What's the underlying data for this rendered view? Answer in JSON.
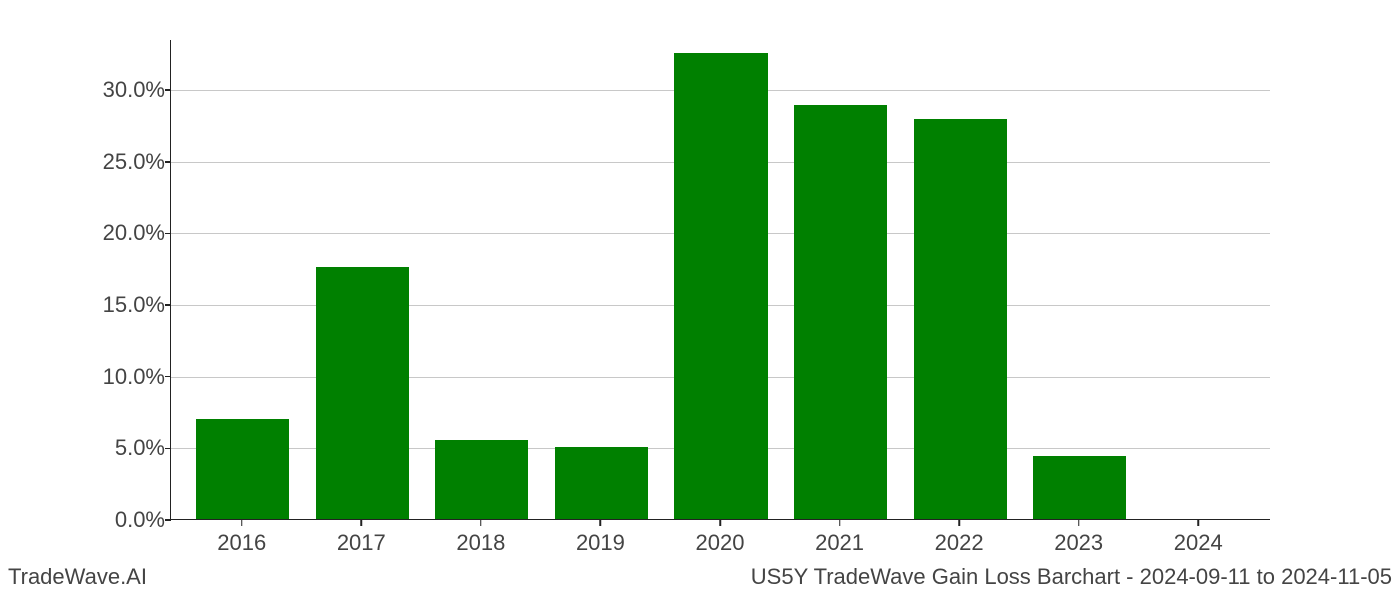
{
  "chart": {
    "type": "bar",
    "categories": [
      "2016",
      "2017",
      "2018",
      "2019",
      "2020",
      "2021",
      "2022",
      "2023",
      "2024"
    ],
    "values": [
      7.0,
      17.6,
      5.5,
      5.0,
      32.5,
      28.9,
      27.9,
      4.4,
      0.0
    ],
    "bar_color": "#008000",
    "grid_color": "#c8c8c8",
    "axis_color": "#222222",
    "tick_label_color": "#444444",
    "background_color": "#ffffff",
    "ylim_min": 0.0,
    "ylim_max": 33.5,
    "yticks": [
      0.0,
      5.0,
      10.0,
      15.0,
      20.0,
      25.0,
      30.0
    ],
    "ytick_labels": [
      "0.0%",
      "5.0%",
      "10.0%",
      "15.0%",
      "20.0%",
      "25.0%",
      "30.0%"
    ],
    "bar_width_ratio": 0.78,
    "axis_fontsize": 22,
    "footer_fontsize": 22
  },
  "footer": {
    "left": "TradeWave.AI",
    "right": "US5Y TradeWave Gain Loss Barchart - 2024-09-11 to 2024-11-05"
  }
}
